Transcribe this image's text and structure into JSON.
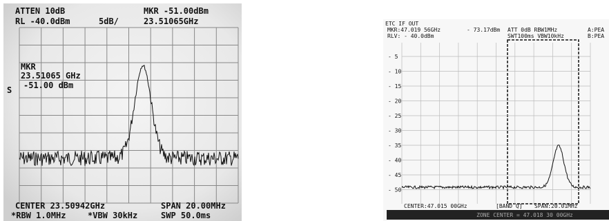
{
  "left_screen": {
    "header": [
      "ATTEN 10dB",
      "MKR -51.00dBm",
      "RL -40.0dBm",
      "5dB/",
      "23.51065GHz"
    ],
    "marker": [
      "MKR",
      "23.51065 GHz",
      "-51.00 dBm"
    ],
    "side_label": "S",
    "footer": [
      "CENTER 23.50942GHz",
      "SPAN 20.00MHz",
      "*RBW 1.0MHz",
      "*VBW 30kHz",
      "SWP 50.0ms"
    ]
  },
  "right_screen": {
    "header": [
      "ETC IF OUT",
      "MKR:47.019 56GHz",
      "- 73.17dBm",
      "ATT 0dB RBW1MHz",
      "A:PEA",
      "RLV: - 40.0dBm",
      "SWT100ms VBW10kHz",
      "B:PEA"
    ],
    "y_labels": [
      "- 5",
      "- 10",
      "- 15",
      "- 20",
      "- 25",
      "- 30",
      "- 35",
      "- 40",
      "- 45",
      "- 50"
    ],
    "footer": [
      "CENTER:47.015 00GHz",
      "[BAND Q]",
      "SPAN:20.01MHz"
    ],
    "status_bar": "ZONE CENTER = 47.018 30 00GHz"
  }
}
